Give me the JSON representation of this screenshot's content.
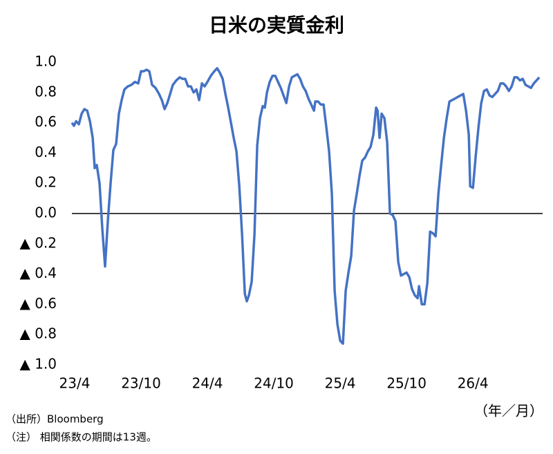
{
  "chart_data": {
    "type": "line",
    "title": "日米の実質金利",
    "x_label": "（年／月）",
    "notes": [
      "（出所）Bloomberg",
      "（注） 相関係数の期間は13週。"
    ],
    "color": "#4472c4",
    "x": [
      -0.25,
      -0.06,
      0.13,
      0.38,
      0.63,
      0.88,
      1.13,
      1.38,
      1.63,
      1.81,
      2.0,
      2.25,
      2.5,
      2.75,
      3.0,
      3.25,
      3.5,
      3.75,
      4.0,
      4.25,
      4.5,
      4.81,
      5.13,
      5.44,
      5.75,
      6.0,
      6.25,
      6.5,
      6.75,
      7.0,
      7.31,
      7.63,
      7.88,
      8.13,
      8.38,
      8.63,
      8.88,
      9.19,
      9.5,
      9.75,
      10.0,
      10.25,
      10.5,
      10.75,
      11.0,
      11.25,
      11.5,
      11.75,
      12.0,
      12.31,
      12.63,
      12.88,
      13.13,
      13.38,
      13.63,
      13.88,
      14.13,
      14.38,
      14.63,
      14.88,
      15.13,
      15.38,
      15.56,
      15.75,
      16.0,
      16.25,
      16.5,
      16.75,
      17.0,
      17.19,
      17.38,
      17.63,
      17.88,
      18.13,
      18.38,
      18.63,
      18.88,
      19.13,
      19.38,
      19.63,
      19.88,
      20.13,
      20.38,
      20.63,
      20.88,
      21.13,
      21.38,
      21.63,
      21.75,
      22.0,
      22.25,
      22.5,
      22.75,
      23.0,
      23.25,
      23.5,
      23.75,
      24.0,
      24.25,
      24.5,
      24.75,
      25.0,
      25.25,
      25.5,
      25.75,
      26.0,
      26.25,
      26.5,
      26.75,
      27.0,
      27.25,
      27.38,
      27.56,
      27.75,
      28.0,
      28.25,
      28.5,
      28.75,
      29.0,
      29.25,
      29.5,
      29.75,
      30.0,
      30.25,
      30.5,
      30.75,
      31.0,
      31.13,
      31.38,
      31.63,
      31.88,
      32.13,
      32.38,
      32.63,
      32.88,
      33.13,
      33.38,
      33.63,
      33.88,
      34.13,
      34.38,
      34.63,
      34.88,
      35.13,
      35.38,
      35.63,
      35.75,
      36.0,
      36.25,
      36.5,
      36.75,
      37.0,
      37.25,
      37.5,
      37.75,
      38.0,
      38.25,
      38.5,
      38.75,
      39.0,
      39.25,
      39.5,
      39.75,
      40.0,
      40.25,
      40.5,
      40.75,
      41.0,
      41.25,
      41.5,
      41.75,
      42.0
    ],
    "values": [
      0.6,
      0.58,
      0.61,
      0.59,
      0.66,
      0.69,
      0.68,
      0.61,
      0.5,
      0.3,
      0.32,
      0.2,
      -0.1,
      -0.35,
      -0.05,
      0.2,
      0.42,
      0.46,
      0.66,
      0.75,
      0.82,
      0.84,
      0.85,
      0.87,
      0.86,
      0.94,
      0.94,
      0.95,
      0.94,
      0.85,
      0.83,
      0.79,
      0.75,
      0.69,
      0.73,
      0.79,
      0.85,
      0.88,
      0.9,
      0.89,
      0.89,
      0.84,
      0.84,
      0.8,
      0.82,
      0.75,
      0.86,
      0.84,
      0.87,
      0.91,
      0.94,
      0.96,
      0.93,
      0.89,
      0.79,
      0.7,
      0.6,
      0.5,
      0.41,
      0.18,
      -0.14,
      -0.53,
      -0.58,
      -0.54,
      -0.45,
      -0.14,
      0.45,
      0.63,
      0.71,
      0.7,
      0.8,
      0.87,
      0.91,
      0.91,
      0.87,
      0.83,
      0.78,
      0.73,
      0.84,
      0.9,
      0.91,
      0.92,
      0.89,
      0.84,
      0.81,
      0.76,
      0.72,
      0.68,
      0.74,
      0.74,
      0.72,
      0.72,
      0.57,
      0.41,
      0.13,
      -0.51,
      -0.73,
      -0.84,
      -0.86,
      -0.51,
      -0.39,
      -0.28,
      0.02,
      0.13,
      0.25,
      0.35,
      0.37,
      0.41,
      0.44,
      0.52,
      0.7,
      0.68,
      0.5,
      0.66,
      0.63,
      0.47,
      0.0,
      -0.01,
      -0.05,
      -0.32,
      -0.41,
      -0.4,
      -0.39,
      -0.42,
      -0.5,
      -0.54,
      -0.56,
      -0.48,
      -0.6,
      -0.6,
      -0.46,
      -0.12,
      -0.13,
      -0.15,
      0.13,
      0.32,
      0.5,
      0.63,
      0.74,
      0.75,
      0.76,
      0.77,
      0.78,
      0.79,
      0.68,
      0.52,
      0.18,
      0.17,
      0.38,
      0.57,
      0.73,
      0.81,
      0.82,
      0.78,
      0.77,
      0.79,
      0.81,
      0.86,
      0.86,
      0.84,
      0.81,
      0.84,
      0.9,
      0.9,
      0.88,
      0.89,
      0.85,
      0.84,
      0.83,
      0.86,
      0.88,
      0.9
    ],
    "xlim": [
      -0.25,
      42.3
    ],
    "xticks": [
      {
        "value": 0,
        "label": "23/4"
      },
      {
        "value": 6,
        "label": "23/10"
      },
      {
        "value": 12,
        "label": "24/4"
      },
      {
        "value": 18,
        "label": "24/10"
      },
      {
        "value": 24,
        "label": "25/4"
      },
      {
        "value": 30,
        "label": "25/10"
      },
      {
        "value": 36,
        "label": "26/4"
      }
    ],
    "ylim": [
      -1,
      1
    ],
    "yticks": [
      {
        "value": 1,
        "label": "1.0"
      },
      0.8,
      0.6,
      0.4,
      0.2,
      {
        "value": 0,
        "label": "0.0"
      },
      {
        "value": -0.2,
        "label": "▲ 0.2"
      },
      {
        "value": -0.4,
        "label": "▲ 0.4"
      },
      {
        "value": -0.6,
        "label": "▲ 0.6"
      },
      {
        "value": -0.8,
        "label": "▲ 0.8"
      },
      {
        "value": -1,
        "label": "▲ 1.0"
      }
    ],
    "zero_line": true
  }
}
